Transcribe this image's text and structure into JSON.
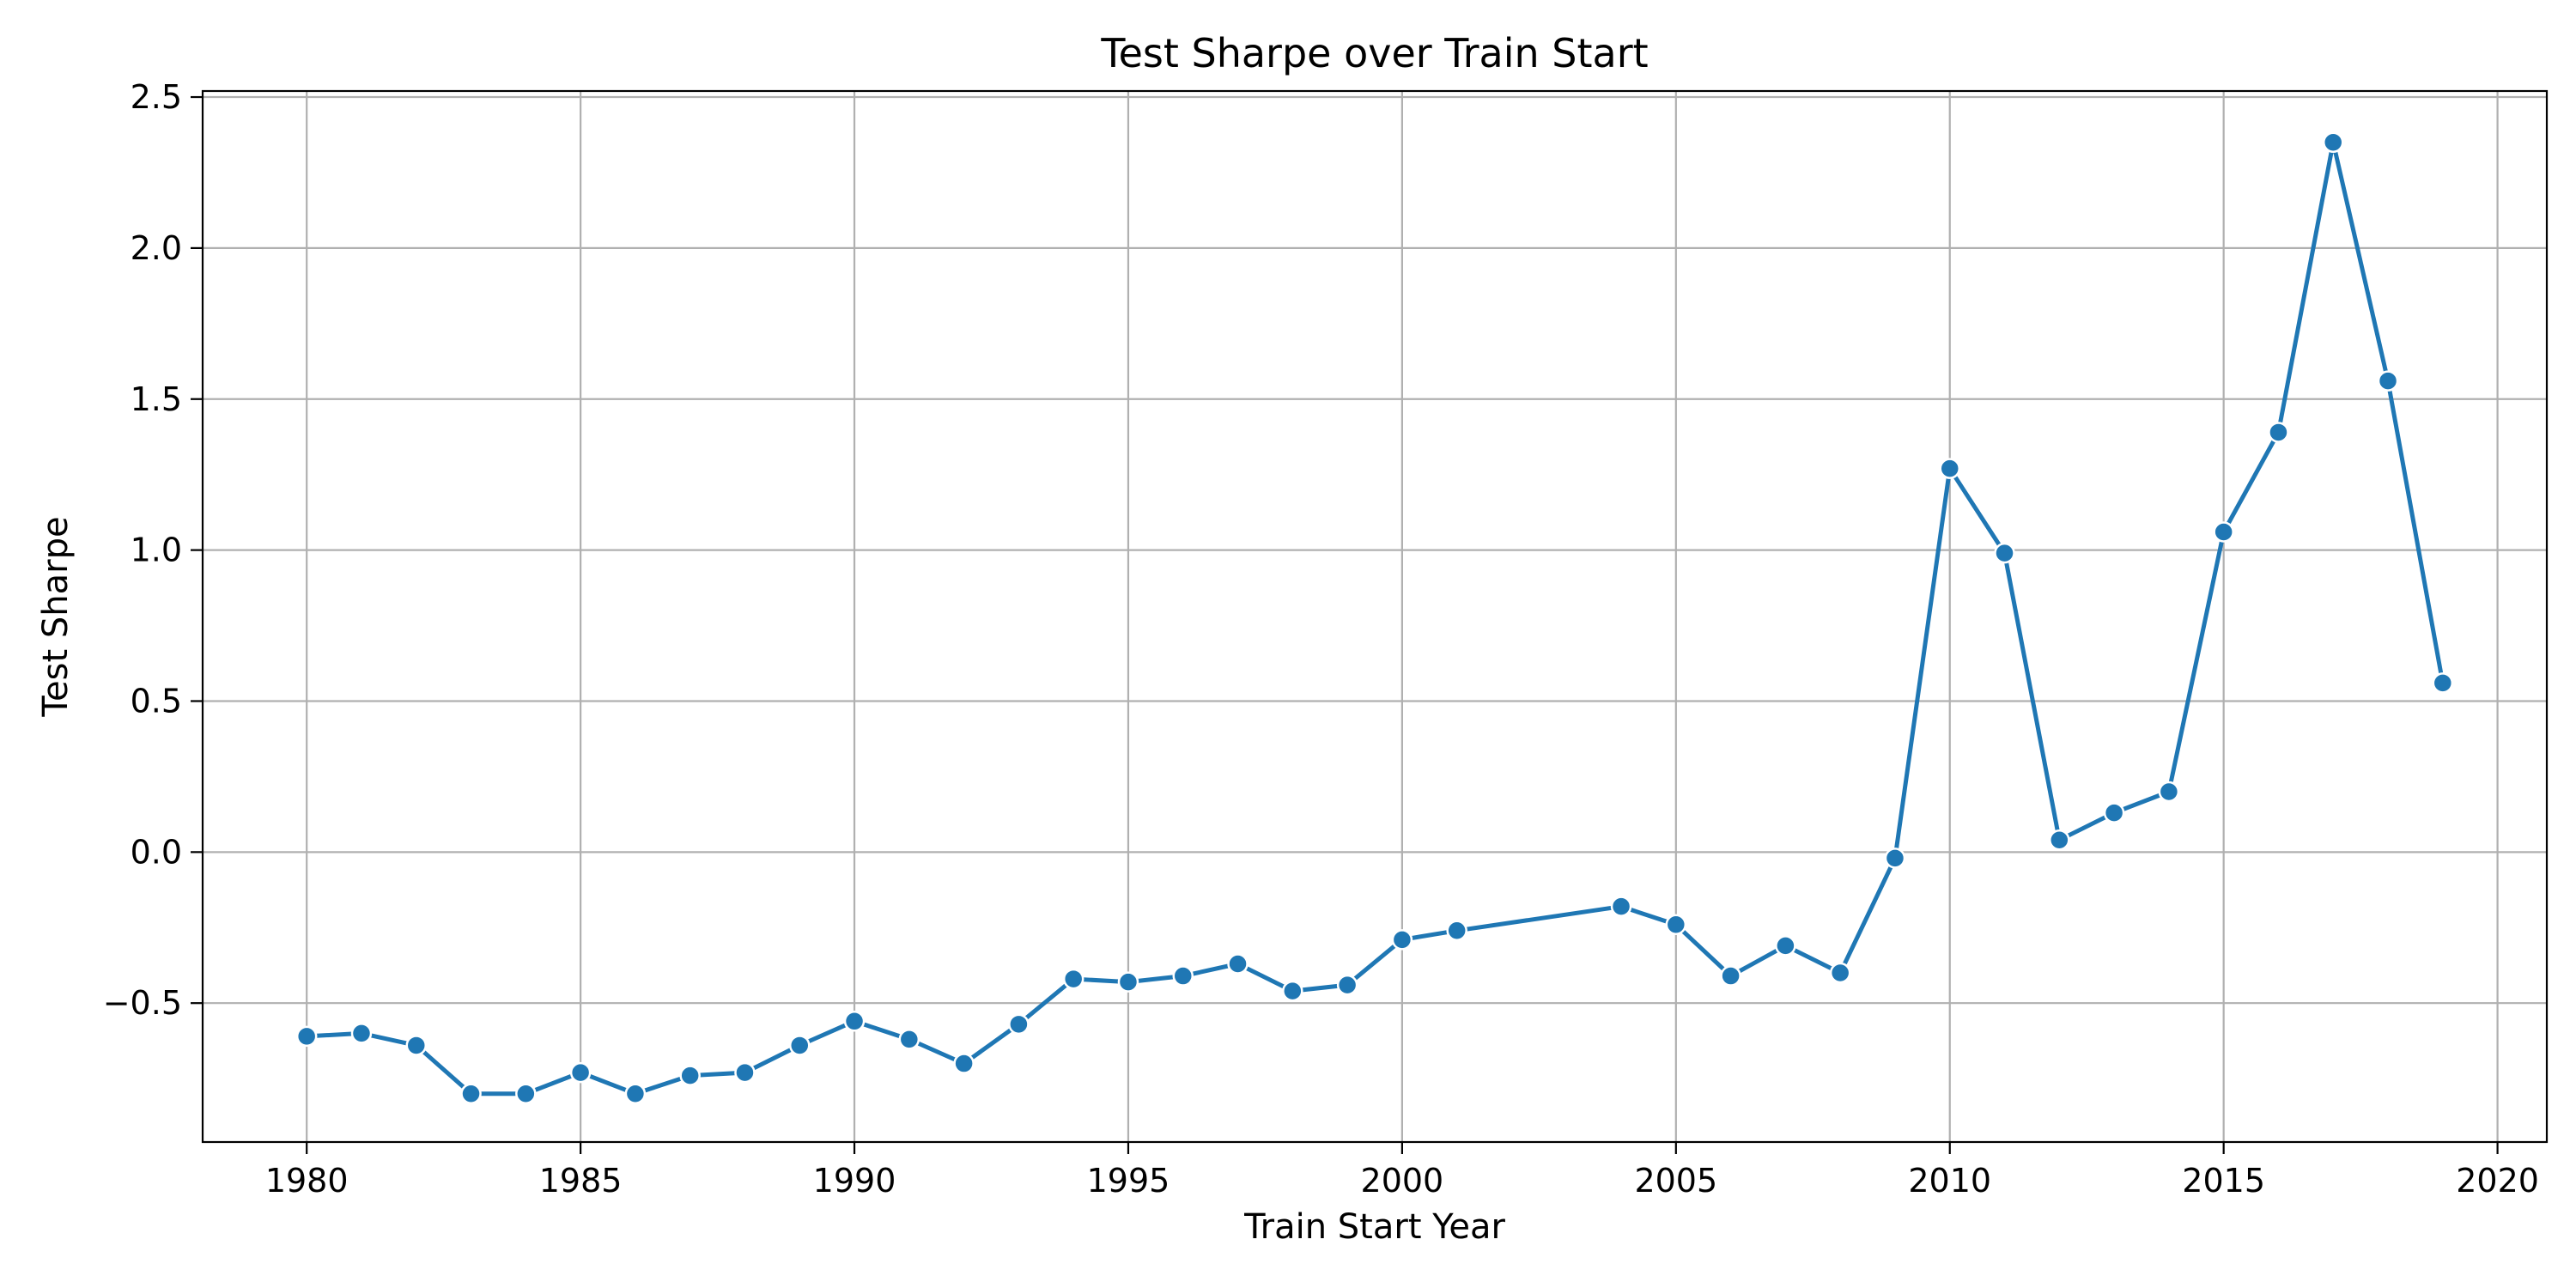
{
  "chart_data": {
    "type": "line",
    "title": "Test Sharpe over Train Start",
    "xlabel": "Train Start Year",
    "ylabel": "Test Sharpe",
    "xlim": [
      1978.1,
      2020.9
    ],
    "ylim": [
      -0.96,
      2.52
    ],
    "x_ticks": [
      1980,
      1985,
      1990,
      1995,
      2000,
      2005,
      2010,
      2015,
      2020
    ],
    "y_ticks": [
      -0.5,
      0.0,
      0.5,
      1.0,
      1.5,
      2.0,
      2.5
    ],
    "x_tick_labels": [
      "1980",
      "1985",
      "1990",
      "1995",
      "2000",
      "2005",
      "2010",
      "2015",
      "2020"
    ],
    "y_tick_labels": [
      "−0.5",
      "0.0",
      "0.5",
      "1.0",
      "1.5",
      "2.0",
      "2.5"
    ],
    "grid": true,
    "series": [
      {
        "color": "#1f77b4",
        "marker": "circle",
        "x": [
          1980,
          1981,
          1982,
          1983,
          1984,
          1985,
          1986,
          1987,
          1988,
          1989,
          1990,
          1991,
          1992,
          1993,
          1994,
          1995,
          1996,
          1997,
          1998,
          1999,
          2000,
          2001,
          2004,
          2005,
          2006,
          2007,
          2008,
          2009,
          2010,
          2011,
          2012,
          2013,
          2014,
          2015,
          2016,
          2017,
          2018,
          2019
        ],
        "y": [
          -0.61,
          -0.6,
          -0.64,
          -0.8,
          -0.8,
          -0.73,
          -0.8,
          -0.74,
          -0.73,
          -0.64,
          -0.56,
          -0.62,
          -0.7,
          -0.57,
          -0.42,
          -0.43,
          -0.41,
          -0.37,
          -0.46,
          -0.44,
          -0.29,
          -0.26,
          -0.18,
          -0.24,
          -0.41,
          -0.31,
          -0.4,
          -0.02,
          1.27,
          0.99,
          0.04,
          0.13,
          0.2,
          1.06,
          1.39,
          2.35,
          1.56,
          0.56
        ]
      }
    ]
  }
}
